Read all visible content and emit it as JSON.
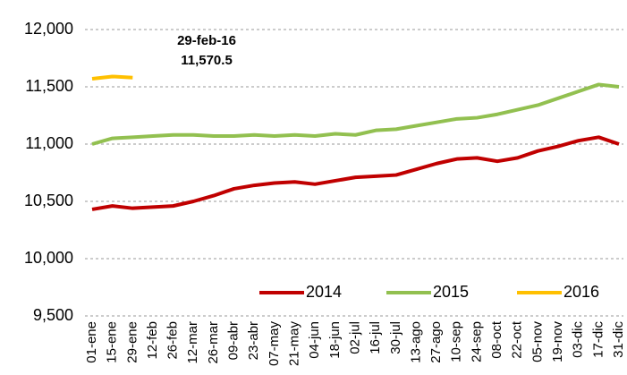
{
  "chart_data": {
    "type": "line",
    "categories": [
      "01-ene",
      "15-ene",
      "29-ene",
      "12-feb",
      "26-feb",
      "12-mar",
      "26-mar",
      "09-abr",
      "23-abr",
      "07-may",
      "21-may",
      "04-jun",
      "18-jun",
      "02-jul",
      "16-jul",
      "30-jul",
      "13-ago",
      "27-ago",
      "10-sep",
      "24-sep",
      "08-oct",
      "22-oct",
      "05-nov",
      "19-nov",
      "03-dic",
      "17-dic",
      "31-dic"
    ],
    "series": [
      {
        "name": "2014",
        "color": "#c00000",
        "values": [
          10430,
          10460,
          10440,
          10450,
          10460,
          10500,
          10550,
          10610,
          10640,
          10660,
          10670,
          10650,
          10680,
          10710,
          10720,
          10730,
          10780,
          10830,
          10870,
          10880,
          10850,
          10880,
          10940,
          10980,
          11030,
          11060,
          11000
        ]
      },
      {
        "name": "2015",
        "color": "#92c050",
        "values": [
          11000,
          11050,
          11060,
          11070,
          11080,
          11080,
          11070,
          11070,
          11080,
          11070,
          11080,
          11070,
          11090,
          11080,
          11120,
          11130,
          11160,
          11190,
          11220,
          11230,
          11260,
          11300,
          11340,
          11400,
          11460,
          11520,
          11500
        ]
      },
      {
        "name": "2016",
        "color": "#ffc000",
        "values": [
          11570,
          11590,
          11580,
          null,
          null,
          null,
          null,
          null,
          null,
          null,
          null,
          null,
          null,
          null,
          null,
          null,
          null,
          null,
          null,
          null,
          null,
          null,
          null,
          null,
          null,
          null,
          null
        ]
      }
    ],
    "annotations": [
      "29-feb-16",
      "11,570.5"
    ],
    "ylim": [
      9500,
      12000
    ],
    "yticks": [
      {
        "value": 9500,
        "label": "9,500"
      },
      {
        "value": 10000,
        "label": "10,000"
      },
      {
        "value": 10500,
        "label": "10,500"
      },
      {
        "value": 11000,
        "label": "11,000"
      },
      {
        "value": 11500,
        "label": "11,500"
      },
      {
        "value": 12000,
        "label": "12,000"
      }
    ],
    "grid": true,
    "legend": "bottom"
  }
}
